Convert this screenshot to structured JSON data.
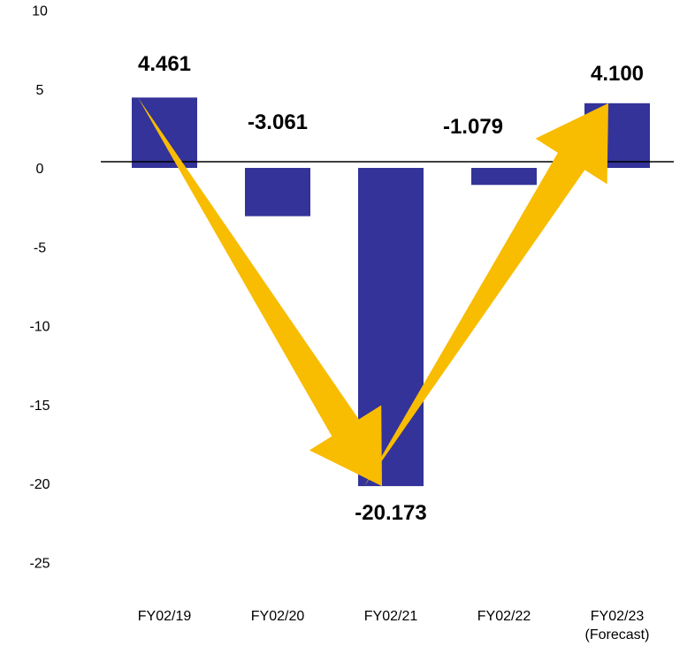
{
  "chart_data": {
    "type": "bar",
    "categories": [
      "FY02/19",
      "FY02/20",
      "FY02/21",
      "FY02/22",
      "FY02/23"
    ],
    "category_sublabels": [
      "",
      "",
      "",
      "",
      "(Forecast)"
    ],
    "values": [
      4.461,
      -3.061,
      -20.173,
      -1.079,
      4.1
    ],
    "data_labels": [
      "4.461",
      "-3.061",
      "-20.173",
      "-1.079",
      "4.100"
    ],
    "y_ticks": [
      "10",
      "5",
      "0",
      "-5",
      "-10",
      "-15",
      "-20",
      "-25"
    ],
    "ylim": [
      -25,
      10
    ],
    "title": "",
    "xlabel": "",
    "ylabel": "",
    "grid": false,
    "legend": "none",
    "colors": {
      "bar": "#333399",
      "arrow": "#F8BC00",
      "zero_line": "#000000"
    },
    "annotations": [
      {
        "type": "arrow",
        "from_category": "FY02/19",
        "from_value": 4.461,
        "to_category": "FY02/21",
        "to_value": -20.173
      },
      {
        "type": "arrow",
        "from_category": "FY02/21",
        "from_value": -20.173,
        "to_category": "FY02/23",
        "to_value": 4.1
      }
    ]
  }
}
